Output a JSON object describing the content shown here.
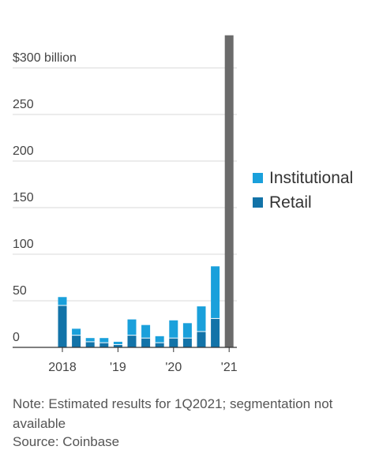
{
  "chart_data": {
    "type": "bar",
    "stacked": true,
    "y_tick_labels": [
      "$300 billion",
      "250",
      "200",
      "150",
      "100",
      "50",
      "0"
    ],
    "y_ticks": [
      300,
      250,
      200,
      150,
      100,
      50,
      0
    ],
    "ylim": [
      0,
      335
    ],
    "x_tick_labels": [
      "2018",
      "'19",
      "'20",
      "'21"
    ],
    "periods": [
      "1Q2018",
      "2Q2018",
      "3Q2018",
      "4Q2018",
      "1Q2019",
      "2Q2019",
      "3Q2019",
      "4Q2019",
      "1Q2020",
      "2Q2020",
      "3Q2020",
      "4Q2020",
      "1Q2021"
    ],
    "series": [
      {
        "name": "Retail",
        "color": "#1273a8",
        "values": [
          45,
          13,
          6,
          5,
          3,
          13,
          10,
          5,
          10,
          10,
          17,
          31,
          null
        ]
      },
      {
        "name": "Institutional",
        "color": "#1aa0db",
        "values": [
          9,
          7,
          4,
          5,
          3,
          17,
          14,
          7,
          19,
          16,
          27,
          56,
          null
        ]
      }
    ],
    "estimate": {
      "period": "1Q2021",
      "value": 335,
      "color": "#6b6b6b"
    },
    "legend_position": "right",
    "grid": true
  },
  "note": "Note: Estimated results for 1Q2021; segmentation not available",
  "source": "Source: Coinbase"
}
